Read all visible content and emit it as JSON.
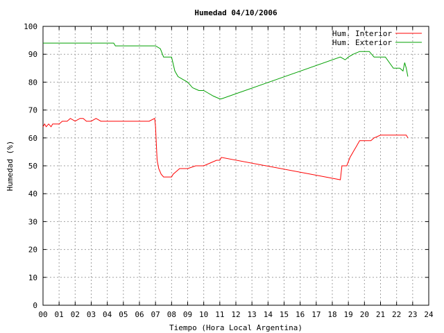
{
  "chart_data": {
    "type": "line",
    "title": "Humedad 04/10/2006",
    "xlabel": "Tiempo (Hora Local Argentina)",
    "ylabel": "Humedad (%)",
    "xlim": [
      0,
      24
    ],
    "ylim": [
      0,
      100
    ],
    "xticks": [
      "00",
      "01",
      "02",
      "03",
      "04",
      "05",
      "06",
      "07",
      "08",
      "09",
      "10",
      "11",
      "12",
      "13",
      "14",
      "15",
      "16",
      "17",
      "18",
      "19",
      "20",
      "21",
      "22",
      "23",
      "24"
    ],
    "yticks": [
      0,
      10,
      20,
      30,
      40,
      50,
      60,
      70,
      80,
      90,
      100
    ],
    "grid": true,
    "legend_position": "top-right",
    "series": [
      {
        "name": "Hum. Interior",
        "color": "#ff0000",
        "x": [
          0.0,
          0.1,
          0.2,
          0.35,
          0.5,
          0.6,
          1.0,
          1.2,
          1.5,
          1.7,
          2.0,
          2.3,
          2.5,
          2.7,
          3.0,
          3.3,
          3.6,
          4.0,
          4.5,
          5.0,
          5.5,
          6.0,
          6.3,
          6.6,
          6.95,
          7.0,
          7.05,
          7.1,
          7.2,
          7.35,
          7.5,
          8.0,
          8.1,
          8.3,
          8.5,
          9.0,
          9.5,
          10.0,
          10.4,
          10.8,
          11.0,
          11.1,
          18.5,
          18.6,
          18.7,
          18.9,
          19.1,
          19.3,
          19.5,
          19.7,
          20.0,
          20.2,
          20.4,
          20.6,
          21.0,
          21.3,
          21.6,
          22.0,
          22.3,
          22.6,
          22.7
        ],
        "y": [
          64,
          65,
          64,
          65,
          64,
          65,
          65,
          66,
          66,
          67,
          66,
          67,
          67,
          66,
          66,
          67,
          66,
          66,
          66,
          66,
          66,
          66,
          66,
          66,
          67,
          64,
          58,
          52,
          49,
          47,
          46,
          46,
          47,
          48,
          49,
          49,
          50,
          50,
          51,
          52,
          52,
          53,
          45,
          50,
          50,
          50,
          53,
          55,
          57,
          59,
          59,
          59,
          59,
          60,
          61,
          61,
          61,
          61,
          61,
          61,
          60
        ]
      },
      {
        "name": "Hum. Exterior",
        "color": "#00a000",
        "x": [
          0.0,
          1.0,
          2.0,
          3.0,
          4.0,
          4.4,
          4.5,
          5.0,
          6.0,
          7.0,
          7.3,
          7.5,
          7.8,
          8.0,
          8.2,
          8.4,
          8.7,
          9.0,
          9.3,
          9.7,
          10.0,
          10.3,
          10.6,
          11.0,
          11.1,
          18.5,
          18.8,
          19.0,
          19.3,
          19.7,
          20.0,
          20.3,
          20.6,
          21.0,
          21.3,
          21.8,
          22.0,
          22.2,
          22.4,
          22.5,
          22.6,
          22.7
        ],
        "y": [
          94,
          94,
          94,
          94,
          94,
          94,
          93,
          93,
          93,
          93,
          92,
          89,
          89,
          89,
          84,
          82,
          81,
          80,
          78,
          77,
          77,
          76,
          75,
          74,
          74,
          89,
          88,
          89,
          90,
          91,
          91,
          91,
          89,
          89,
          89,
          85,
          85,
          85,
          84,
          87,
          85,
          82
        ]
      }
    ]
  }
}
